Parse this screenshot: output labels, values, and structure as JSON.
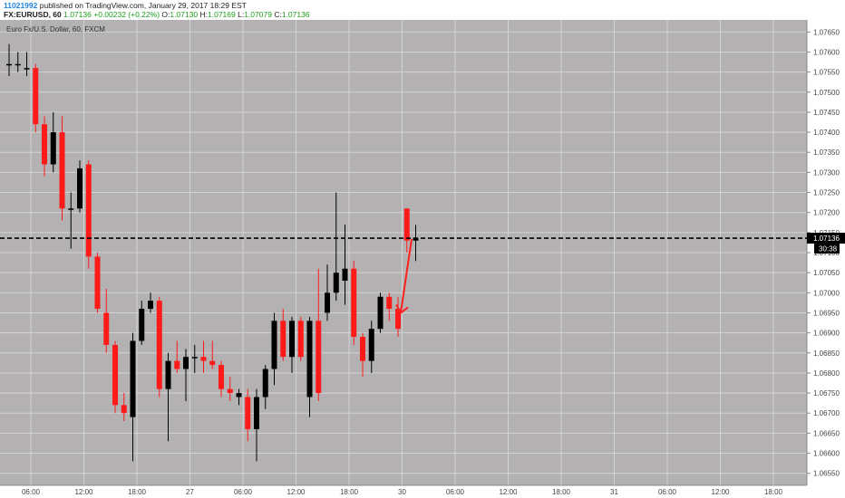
{
  "header": {
    "publisher_id": "11021992",
    "published_text": "published on TradingView.com, January 29, 2017 18:29 EST",
    "symbol": "FX:EURUSD, 60",
    "last_price": "1.07136",
    "change": "+0.00232 (+0.22%)",
    "open_label": "O:",
    "open": "1.07130",
    "high_label": "H:",
    "high": "1.07169",
    "low_label": "L:",
    "low": "1.07079",
    "close_label": "C:",
    "close": "1.07136"
  },
  "colors": {
    "background": "#b3b1b2",
    "grid": "#d4d3d4",
    "up_candle": "#000000",
    "down_candle": "#ff1a1a",
    "annotation_arrow": "#ff2020",
    "hline": "#000000"
  },
  "chart_data": {
    "type": "candlestick",
    "title": "Euro Fx/U.S. Dollar, 60, FXCM",
    "ylim": [
      1.0652,
      1.0768
    ],
    "y_ticks": [
      "1.07650",
      "1.07600",
      "1.07550",
      "1.07500",
      "1.07450",
      "1.07400",
      "1.07350",
      "1.07300",
      "1.07250",
      "1.07200",
      "1.07150",
      "1.07100",
      "1.07050",
      "1.07000",
      "1.06950",
      "1.06900",
      "1.06850",
      "1.06800",
      "1.06750",
      "1.06700",
      "1.06650",
      "1.06600",
      "1.06550"
    ],
    "x_ticks": [
      "06:00",
      "12:00",
      "18:00",
      "27",
      "06:00",
      "12:00",
      "18:00",
      "30",
      "06:00",
      "12:00",
      "18:00",
      "31",
      "06:00",
      "12:00",
      "18:00"
    ],
    "grid": true,
    "last_price_label": "1.07136",
    "countdown_label": "30:38",
    "horizontal_line": 1.07136,
    "candles": [
      {
        "o": 1.0757,
        "h": 1.0762,
        "l": 1.0754,
        "c": 1.0757
      },
      {
        "o": 1.0757,
        "h": 1.076,
        "l": 1.0755,
        "c": 1.0757
      },
      {
        "o": 1.0756,
        "h": 1.076,
        "l": 1.0754,
        "c": 1.0756
      },
      {
        "o": 1.0756,
        "h": 1.0757,
        "l": 1.074,
        "c": 1.0742
      },
      {
        "o": 1.0742,
        "h": 1.0744,
        "l": 1.0729,
        "c": 1.0732
      },
      {
        "o": 1.0732,
        "h": 1.0745,
        "l": 1.073,
        "c": 1.074
      },
      {
        "o": 1.074,
        "h": 1.0744,
        "l": 1.0718,
        "c": 1.0721
      },
      {
        "o": 1.0721,
        "h": 1.0725,
        "l": 1.0711,
        "c": 1.0721
      },
      {
        "o": 1.0721,
        "h": 1.0733,
        "l": 1.072,
        "c": 1.0731
      },
      {
        "o": 1.0732,
        "h": 1.0733,
        "l": 1.0706,
        "c": 1.0709
      },
      {
        "o": 1.0709,
        "h": 1.071,
        "l": 1.0695,
        "c": 1.0696
      },
      {
        "o": 1.0695,
        "h": 1.0701,
        "l": 1.0685,
        "c": 1.0687
      },
      {
        "o": 1.0687,
        "h": 1.0688,
        "l": 1.067,
        "c": 1.0672
      },
      {
        "o": 1.0672,
        "h": 1.0675,
        "l": 1.0668,
        "c": 1.067
      },
      {
        "o": 1.0669,
        "h": 1.069,
        "l": 1.0658,
        "c": 1.0688
      },
      {
        "o": 1.0688,
        "h": 1.0698,
        "l": 1.0687,
        "c": 1.0696
      },
      {
        "o": 1.0696,
        "h": 1.07,
        "l": 1.0695,
        "c": 1.0698
      },
      {
        "o": 1.0698,
        "h": 1.0699,
        "l": 1.0674,
        "c": 1.0676
      },
      {
        "o": 1.0676,
        "h": 1.0685,
        "l": 1.0663,
        "c": 1.0683
      },
      {
        "o": 1.0683,
        "h": 1.0688,
        "l": 1.068,
        "c": 1.0681
      },
      {
        "o": 1.0681,
        "h": 1.0686,
        "l": 1.0673,
        "c": 1.0684
      },
      {
        "o": 1.0684,
        "h": 1.0687,
        "l": 1.068,
        "c": 1.0684
      },
      {
        "o": 1.0684,
        "h": 1.0688,
        "l": 1.068,
        "c": 1.0683
      },
      {
        "o": 1.0683,
        "h": 1.0688,
        "l": 1.0681,
        "c": 1.0682
      },
      {
        "o": 1.0682,
        "h": 1.0683,
        "l": 1.0674,
        "c": 1.0676
      },
      {
        "o": 1.0676,
        "h": 1.0679,
        "l": 1.0673,
        "c": 1.0675
      },
      {
        "o": 1.0674,
        "h": 1.0676,
        "l": 1.0672,
        "c": 1.0675
      },
      {
        "o": 1.0674,
        "h": 1.0676,
        "l": 1.0663,
        "c": 1.0666
      },
      {
        "o": 1.0666,
        "h": 1.0676,
        "l": 1.0658,
        "c": 1.0674
      },
      {
        "o": 1.0674,
        "h": 1.0682,
        "l": 1.0671,
        "c": 1.0681
      },
      {
        "o": 1.0681,
        "h": 1.0695,
        "l": 1.0677,
        "c": 1.0693
      },
      {
        "o": 1.0693,
        "h": 1.0696,
        "l": 1.0683,
        "c": 1.0684
      },
      {
        "o": 1.0684,
        "h": 1.0694,
        "l": 1.068,
        "c": 1.0693
      },
      {
        "o": 1.0693,
        "h": 1.0694,
        "l": 1.0683,
        "c": 1.0684
      },
      {
        "o": 1.0674,
        "h": 1.0694,
        "l": 1.0669,
        "c": 1.0693
      },
      {
        "o": 1.0693,
        "h": 1.0706,
        "l": 1.0673,
        "c": 1.0675
      },
      {
        "o": 1.0695,
        "h": 1.0707,
        "l": 1.0693,
        "c": 1.07
      },
      {
        "o": 1.07,
        "h": 1.0725,
        "l": 1.0698,
        "c": 1.0705
      },
      {
        "o": 1.0703,
        "h": 1.0717,
        "l": 1.0697,
        "c": 1.0706
      },
      {
        "o": 1.0706,
        "h": 1.0708,
        "l": 1.0687,
        "c": 1.0689
      },
      {
        "o": 1.0689,
        "h": 1.069,
        "l": 1.0679,
        "c": 1.0683
      },
      {
        "o": 1.0683,
        "h": 1.0693,
        "l": 1.068,
        "c": 1.0691
      },
      {
        "o": 1.0691,
        "h": 1.07,
        "l": 1.069,
        "c": 1.0699
      },
      {
        "o": 1.0699,
        "h": 1.07,
        "l": 1.0693,
        "c": 1.0696
      },
      {
        "o": 1.0696,
        "h": 1.0699,
        "l": 1.0689,
        "c": 1.0691
      },
      {
        "o": 1.0721,
        "h": 1.0721,
        "l": 1.071,
        "c": 1.0713
      },
      {
        "o": 1.0713,
        "h": 1.07169,
        "l": 1.07079,
        "c": 1.07136
      }
    ],
    "annotation": "red-arrow-down"
  }
}
